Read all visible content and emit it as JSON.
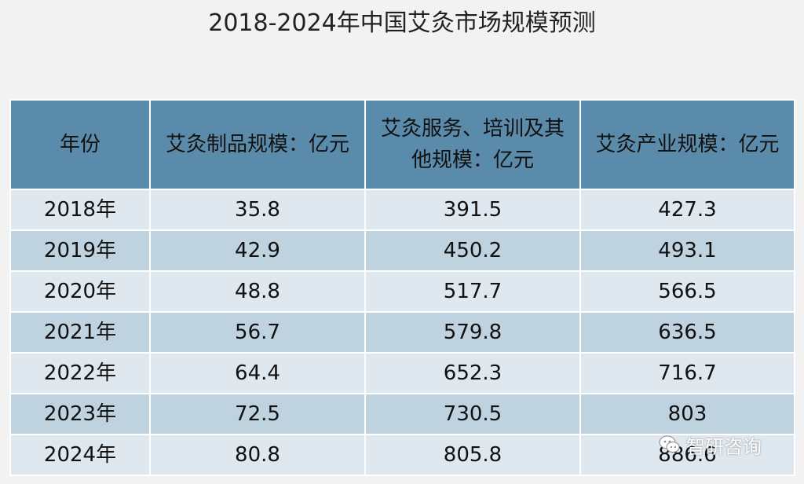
{
  "title": "2018-2024年中国艾灸市场规模预测",
  "watermark": {
    "text": "智研咨询",
    "icon": "wechat-icon"
  },
  "colors": {
    "header_bg": "#5b8baa",
    "row_light": "#dfe8ef",
    "row_dark": "#bfd2df",
    "page_bg": "#f2f2f2"
  },
  "chart_data": {
    "type": "table",
    "columns": [
      "年份",
      "艾灸制品规模：亿元",
      "艾灸服务、培训及其他规模：亿元",
      "艾灸产业规模：亿元"
    ],
    "rows": [
      [
        "2018年",
        "35.8",
        "391.5",
        "427.3"
      ],
      [
        "2019年",
        "42.9",
        "450.2",
        "493.1"
      ],
      [
        "2020年",
        "48.8",
        "517.7",
        "566.5"
      ],
      [
        "2021年",
        "56.7",
        "579.8",
        "636.5"
      ],
      [
        "2022年",
        "64.4",
        "652.3",
        "716.7"
      ],
      [
        "2023年",
        "72.5",
        "730.5",
        "803"
      ],
      [
        "2024年",
        "80.8",
        "805.8",
        "886.6"
      ]
    ]
  }
}
